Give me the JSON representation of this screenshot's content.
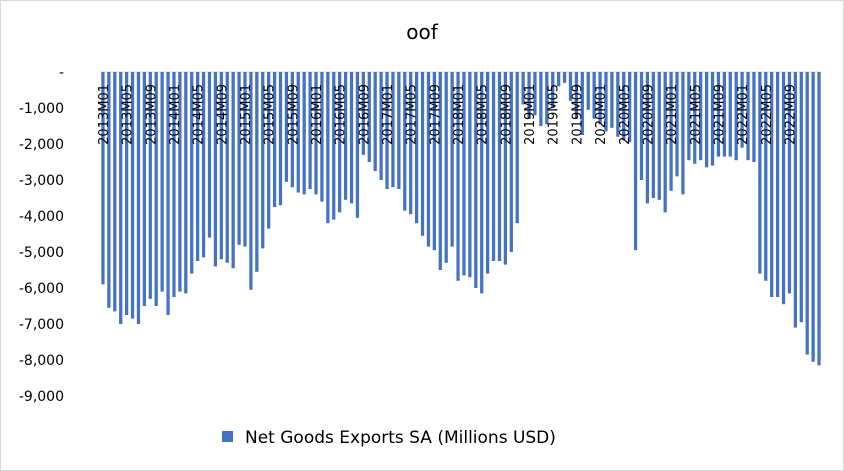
{
  "chart_data": {
    "type": "bar",
    "title": "oof",
    "xlabel": "",
    "ylabel": "",
    "ylim": [
      -9000,
      0
    ],
    "y_ticks": [
      0,
      -1000,
      -2000,
      -3000,
      -4000,
      -5000,
      -6000,
      -7000,
      -8000,
      -9000
    ],
    "y_tick_labels": [
      "-",
      "-1,000",
      "-2,000",
      "-3,000",
      "-4,000",
      "-5,000",
      "-6,000",
      "-7,000",
      "-8,000",
      "-9,000"
    ],
    "x_tick_labels": [
      "2013M01",
      "2013M05",
      "2013M09",
      "2014M01",
      "2014M05",
      "2014M09",
      "2015M01",
      "2015M05",
      "2015M09",
      "2016M01",
      "2016M05",
      "2016M09",
      "2017M01",
      "2017M05",
      "2017M09",
      "2018M01",
      "2018M05",
      "2018M09",
      "2019M01",
      "2019M05",
      "2019M09",
      "2020M01",
      "2020M05",
      "2020M09",
      "2021M01",
      "2021M05",
      "2021M09",
      "2022M01",
      "2022M05",
      "2022M09"
    ],
    "x_tick_step": 4,
    "grid": false,
    "legend_position": "bottom",
    "color": "#4472C4",
    "series": [
      {
        "name": "Net Goods Exports SA (Millions USD)",
        "values": [
          -5900,
          -6550,
          -6650,
          -7000,
          -6750,
          -6850,
          -7000,
          -6500,
          -6300,
          -6500,
          -6100,
          -6750,
          -6250,
          -6100,
          -6150,
          -5600,
          -5250,
          -5150,
          -4600,
          -5400,
          -5200,
          -5300,
          -5450,
          -4800,
          -4850,
          -6050,
          -5550,
          -4900,
          -4350,
          -3750,
          -3700,
          -3050,
          -3200,
          -3350,
          -3400,
          -3250,
          -3400,
          -3600,
          -4200,
          -4100,
          -3900,
          -3550,
          -3650,
          -4050,
          -2300,
          -2500,
          -2750,
          -3000,
          -3250,
          -3200,
          -3250,
          -3850,
          -3950,
          -4200,
          -4550,
          -4850,
          -4950,
          -5500,
          -5300,
          -4850,
          -5800,
          -5650,
          -5700,
          -6000,
          -6150,
          -5600,
          -5250,
          -5250,
          -5350,
          -5000,
          -4200,
          -900,
          -1300,
          -1200,
          -1500,
          -1450,
          -1000,
          -400,
          -300,
          -800,
          -1300,
          -1750,
          -1050,
          -1300,
          -1450,
          -1650,
          -1550,
          -1800,
          -1900,
          -1950,
          -4950,
          -3000,
          -3650,
          -3500,
          -3550,
          -3900,
          -3300,
          -2900,
          -3400,
          -2450,
          -2550,
          -2450,
          -2650,
          -2600,
          -2350,
          -2350,
          -2350,
          -2450,
          -2100,
          -2450,
          -2500,
          -5600,
          -5800,
          -6250,
          -6250,
          -6450,
          -6150,
          -7100,
          -6950,
          -7850,
          -8050,
          -8150
        ]
      }
    ]
  }
}
